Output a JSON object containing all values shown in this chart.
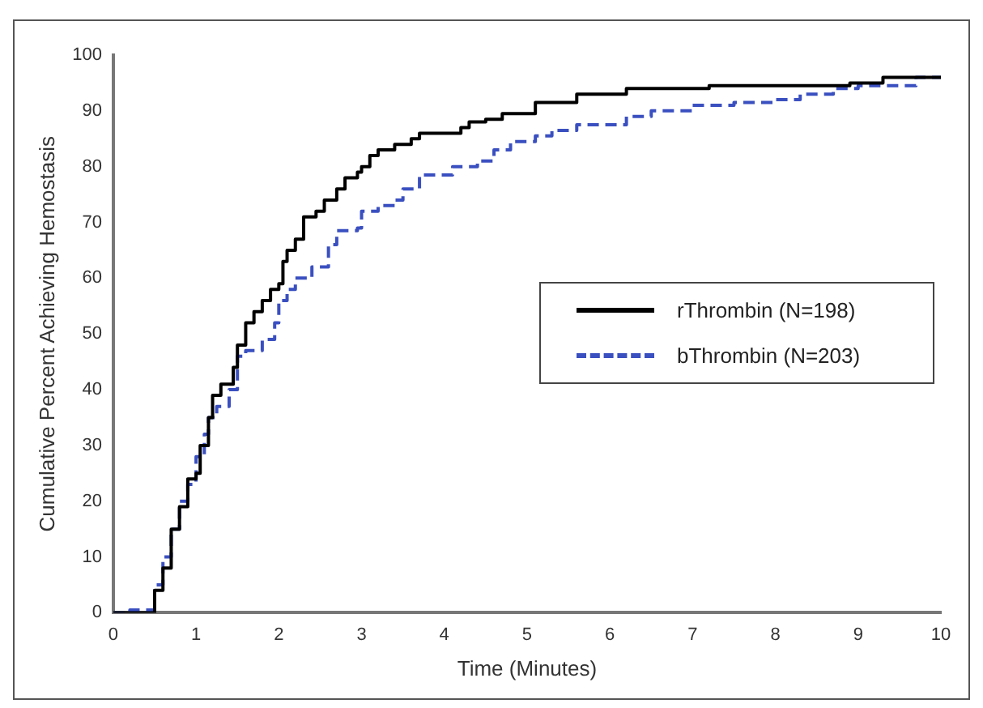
{
  "chart_data": {
    "type": "step",
    "xlabel": "Time (Minutes)",
    "ylabel": "Cumulative Percent Achieving Hemostasis",
    "xlim": [
      0,
      10
    ],
    "xticks": [
      0,
      1,
      2,
      3,
      4,
      5,
      6,
      7,
      8,
      9,
      10
    ],
    "ylim": [
      0,
      100
    ],
    "yticks": [
      0,
      10,
      20,
      30,
      40,
      50,
      60,
      70,
      80,
      90,
      100
    ],
    "legend": "right",
    "grid": false,
    "series": [
      {
        "name": "rThrombin (N=198)",
        "color": "#000000",
        "line_style": "solid",
        "x": [
          0,
          0.5,
          0.5,
          0.6,
          0.7,
          0.8,
          0.9,
          1.0,
          1.05,
          1.15,
          1.2,
          1.3,
          1.45,
          1.5,
          1.6,
          1.7,
          1.8,
          1.9,
          2.0,
          2.05,
          2.1,
          2.2,
          2.3,
          2.45,
          2.55,
          2.7,
          2.8,
          2.95,
          3.0,
          3.1,
          3.2,
          3.4,
          3.6,
          3.7,
          4.2,
          4.3,
          4.5,
          4.7,
          5.1,
          5.6,
          6.2,
          7.2,
          8.9,
          9.3,
          10
        ],
        "values": [
          0,
          0,
          4,
          8,
          15,
          19,
          24,
          25,
          30,
          35,
          39,
          41,
          44,
          48,
          52,
          54,
          56,
          58,
          59,
          63,
          65,
          67,
          71,
          72,
          74,
          76,
          78,
          79,
          80,
          82,
          83,
          84,
          85,
          86,
          87,
          88,
          88.5,
          89.5,
          91.5,
          93,
          94,
          94.5,
          95,
          96,
          96
        ]
      },
      {
        "name": "bThrombin (N=203)",
        "color": "#3a4fc0",
        "line_style": "dashed",
        "x": [
          0,
          0.2,
          0.45,
          0.5,
          0.6,
          0.7,
          0.8,
          0.9,
          1.0,
          1.1,
          1.15,
          1.25,
          1.4,
          1.5,
          1.6,
          1.8,
          1.95,
          2.0,
          2.1,
          2.2,
          2.4,
          2.6,
          2.7,
          2.95,
          3.0,
          3.2,
          3.4,
          3.5,
          3.7,
          4.0,
          4.1,
          4.4,
          4.6,
          4.8,
          5.1,
          5.3,
          5.6,
          6.0,
          6.2,
          6.5,
          7.0,
          7.5,
          8.0,
          8.3,
          8.7,
          9.0,
          9.7,
          10
        ],
        "values": [
          0,
          0.5,
          0.5,
          5,
          10,
          15,
          20,
          23,
          28,
          32,
          35,
          37,
          40,
          46,
          47,
          49,
          52,
          56,
          58,
          60,
          62,
          66,
          68.5,
          69,
          72,
          73,
          74,
          76,
          78.5,
          78.5,
          80,
          81,
          83,
          84.5,
          85.5,
          86.5,
          87.5,
          87.5,
          89,
          90,
          91,
          91.5,
          92,
          93,
          94,
          94.5,
          96,
          96
        ]
      }
    ]
  }
}
